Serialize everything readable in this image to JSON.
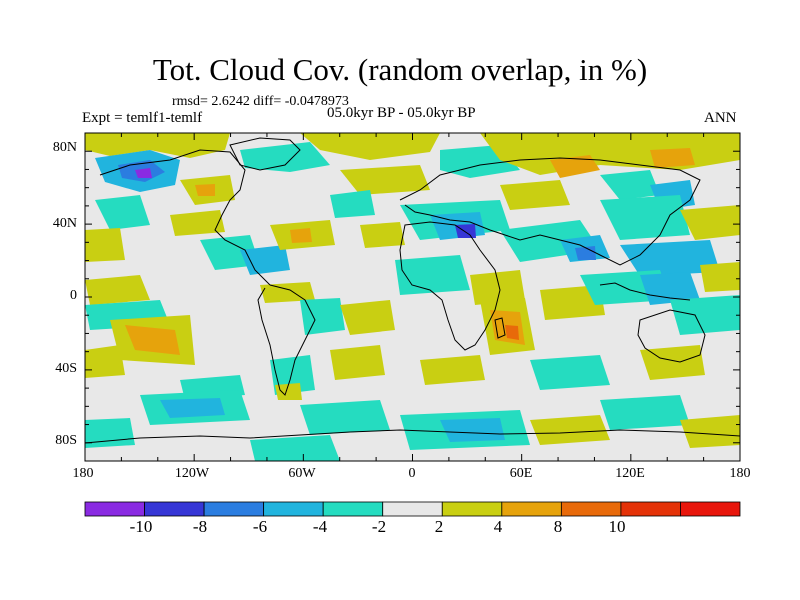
{
  "title": "Tot. Cloud Cov. (random overlap, in %)",
  "stats": "rmsd= 2.6242 diff= -0.0478973",
  "experiment": "Expt = temlf1-temlf",
  "period": "05.0kyr BP - 05.0kyr BP",
  "season": "ANN",
  "lat_labels": [
    "80N",
    "40N",
    "0",
    "40S",
    "80S"
  ],
  "lon_labels": [
    "180",
    "120W",
    "60W",
    "0",
    "60E",
    "120E",
    "180"
  ],
  "colorbar": {
    "labels": [
      "-10",
      "-8",
      "-6",
      "-4",
      "-2",
      "2",
      "4",
      "8",
      "10"
    ],
    "colors": [
      "#8a2be2",
      "#3636d6",
      "#2b7de0",
      "#21b4de",
      "#25dcc0",
      "#e8e8e8",
      "#c9cf12",
      "#e6a30c",
      "#e86a0a",
      "#e43208",
      "#e8160c"
    ]
  },
  "map": {
    "background": "#e8e8e8",
    "field_colors": {
      "neg10": "#8a2be2",
      "neg8": "#3636d6",
      "neg6": "#2b7de0",
      "neg4": "#21b4de",
      "neg2": "#25dcc0",
      "pos2": "#c9cf12",
      "pos4": "#e6a30c",
      "pos8": "#e86a0a"
    }
  }
}
